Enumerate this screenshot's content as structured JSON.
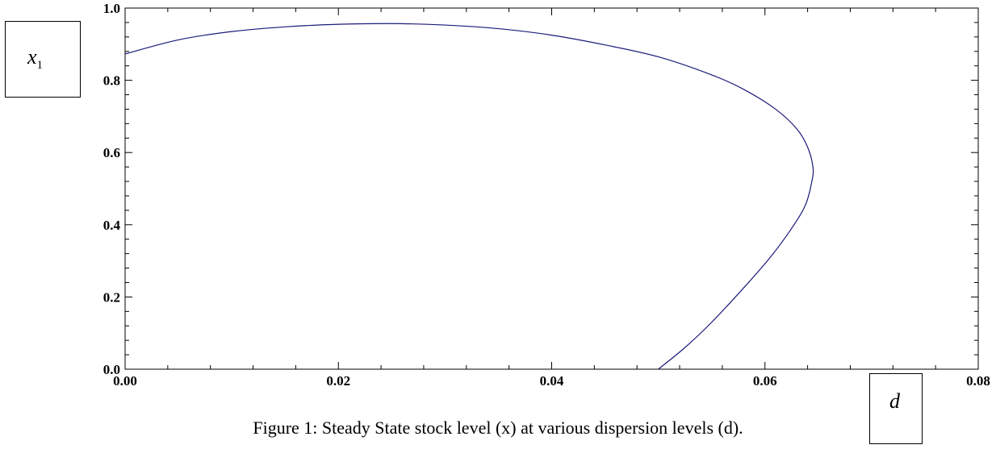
{
  "chart_data": {
    "type": "line",
    "xlabel": "d",
    "ylabel_var": "x",
    "ylabel_sub": "1",
    "xlim": [
      0.0,
      0.08
    ],
    "ylim": [
      0.0,
      1.0
    ],
    "x_ticks": [
      "0.00",
      "0.02",
      "0.04",
      "0.06",
      "0.08"
    ],
    "y_ticks": [
      "0.0",
      "0.2",
      "0.4",
      "0.6",
      "0.8",
      "1.0"
    ],
    "line_color": "#1a1a7a",
    "series": [
      {
        "x": [
          0.0,
          0.005,
          0.01,
          0.015,
          0.02,
          0.025,
          0.03,
          0.035,
          0.04,
          0.045,
          0.05,
          0.055,
          0.058,
          0.061,
          0.063,
          0.064,
          0.0645,
          0.0644,
          0.0638,
          0.0625,
          0.0605,
          0.058,
          0.055,
          0.0525,
          0.05
        ],
        "y": [
          0.873,
          0.912,
          0.935,
          0.948,
          0.955,
          0.957,
          0.953,
          0.943,
          0.925,
          0.898,
          0.865,
          0.815,
          0.775,
          0.72,
          0.665,
          0.615,
          0.56,
          0.52,
          0.455,
          0.39,
          0.31,
          0.225,
          0.13,
          0.06,
          0.0
        ]
      }
    ]
  },
  "caption": "Figure 1: Steady State stock level (x) at various dispersion levels (d)."
}
